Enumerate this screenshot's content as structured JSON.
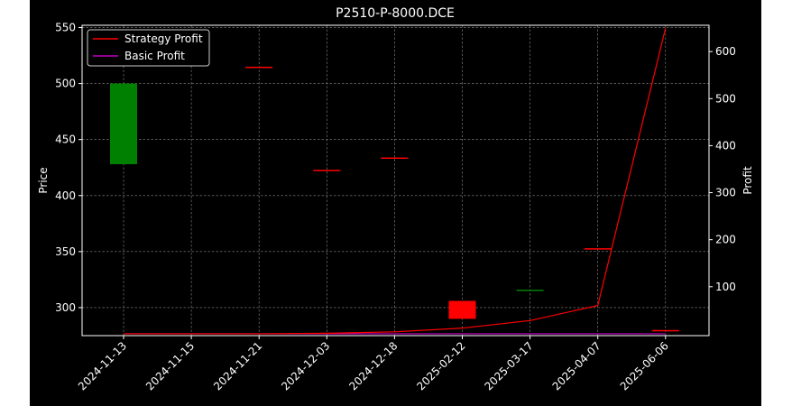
{
  "chart_data": {
    "type": "candlestick+line",
    "title": "P2510-P-8000.DCE",
    "ylabel_left": "Price",
    "ylabel_right": "Profit",
    "xlabel": "",
    "ylim_left": [
      275,
      552
    ],
    "ylim_right": [
      -4,
      656
    ],
    "yticks_left": [
      300,
      350,
      400,
      450,
      500,
      550
    ],
    "yticks_right": [
      100,
      200,
      300,
      400,
      500,
      600
    ],
    "grid": true,
    "legend_position": "top-left",
    "categories": [
      "2024-11-13",
      "2024-11-15",
      "2024-11-21",
      "2024-12-03",
      "2024-12-18",
      "2025-02-12",
      "2025-03-17",
      "2025-04-07",
      "2025-06-06"
    ],
    "candles": [
      {
        "date": "2024-11-13",
        "open": 428,
        "close": 500,
        "color": "#008000"
      },
      {
        "date": "2024-11-21",
        "open": 515,
        "close": 515,
        "color": "#ff0000"
      },
      {
        "date": "2024-12-03",
        "open": 423,
        "close": 423,
        "color": "#ff0000"
      },
      {
        "date": "2024-12-18",
        "open": 434,
        "close": 434,
        "color": "#ff0000"
      },
      {
        "date": "2025-02-12",
        "open": 306,
        "close": 290,
        "color": "#ff0000"
      },
      {
        "date": "2025-03-17",
        "open": 316,
        "close": 316,
        "color": "#008000"
      },
      {
        "date": "2025-04-07",
        "open": 353,
        "close": 353,
        "color": "#ff0000"
      },
      {
        "date": "2025-06-06",
        "open": 280,
        "close": 280,
        "color": "#ff0000"
      }
    ],
    "series": [
      {
        "name": "Strategy Profit",
        "color": "#ff0000",
        "values": [
          0,
          0,
          0,
          1,
          4,
          12,
          28,
          60,
          650
        ]
      },
      {
        "name": "Basic Profit",
        "color": "#bf00bf",
        "values": [
          0,
          0,
          0,
          0,
          0,
          0,
          0,
          0,
          0
        ]
      }
    ]
  }
}
